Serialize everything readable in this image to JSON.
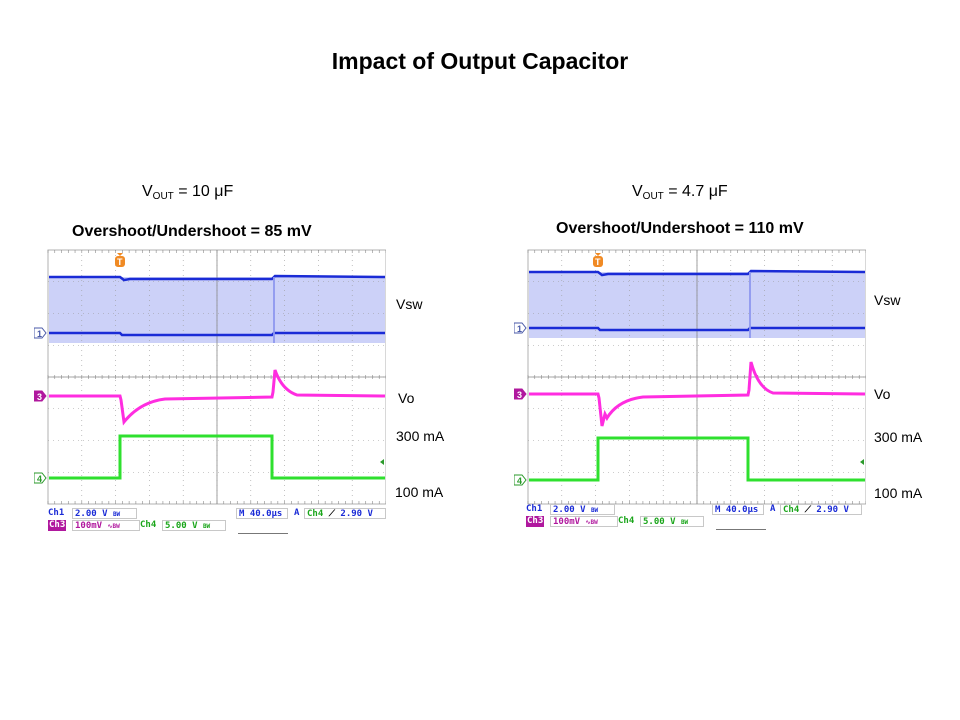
{
  "title": "Impact of Output Capacitor",
  "colors": {
    "ch1": "#1a2bd6",
    "ch1_haze": "#8f98f0",
    "ch3": "#ff2de0",
    "ch4": "#2fe02f",
    "trigger": "#f08a24",
    "grid": "#9a9a9a"
  },
  "panels": [
    {
      "vout_prefix": "V",
      "vout_sub": "OUT",
      "vout_value": "= 10 μF",
      "overshoot": "Overshoot/Undershoot = 85 mV",
      "labels": {
        "vsw": "Vsw",
        "vo": "Vo",
        "high_current": "300 mA",
        "low_current": "100 mA"
      },
      "markers": {
        "ch1": "1",
        "ch3": "3",
        "ch4": "4",
        "trigger": "T"
      },
      "status": {
        "ch1_label": "Ch1",
        "ch1_scale": "2.00 V",
        "ch1_coupling": "BW",
        "ch3_label": "Ch3",
        "ch3_scale": "100mV",
        "ch3_coupling": "∿BW",
        "ch4_label": "Ch4",
        "ch4_scale": "5.00 V",
        "ch4_coupling": "BW",
        "timebase": "M 40.0μs",
        "trigger_mode": "A",
        "trigger_source": "Ch4",
        "trigger_slope": "⟋",
        "trigger_level": "2.90 V"
      }
    },
    {
      "vout_prefix": "V",
      "vout_sub": "OUT",
      "vout_value": "= 4.7 μF",
      "overshoot": "Overshoot/Undershoot = 110 mV",
      "labels": {
        "vsw": "Vsw",
        "vo": "Vo",
        "high_current": "300 mA",
        "low_current": "100 mA"
      },
      "markers": {
        "ch1": "1",
        "ch3": "3",
        "ch4": "4",
        "trigger": "T"
      },
      "status": {
        "ch1_label": "Ch1",
        "ch1_scale": "2.00 V",
        "ch1_coupling": "BW",
        "ch3_label": "Ch3",
        "ch3_scale": "100mV",
        "ch3_coupling": "∿BW",
        "ch4_label": "Ch4",
        "ch4_scale": "5.00 V",
        "ch4_coupling": "BW",
        "timebase": "M 40.0μs",
        "trigger_mode": "A",
        "trigger_source": "Ch4",
        "trigger_slope": "⟋",
        "trigger_level": "2.90 V"
      }
    }
  ]
}
